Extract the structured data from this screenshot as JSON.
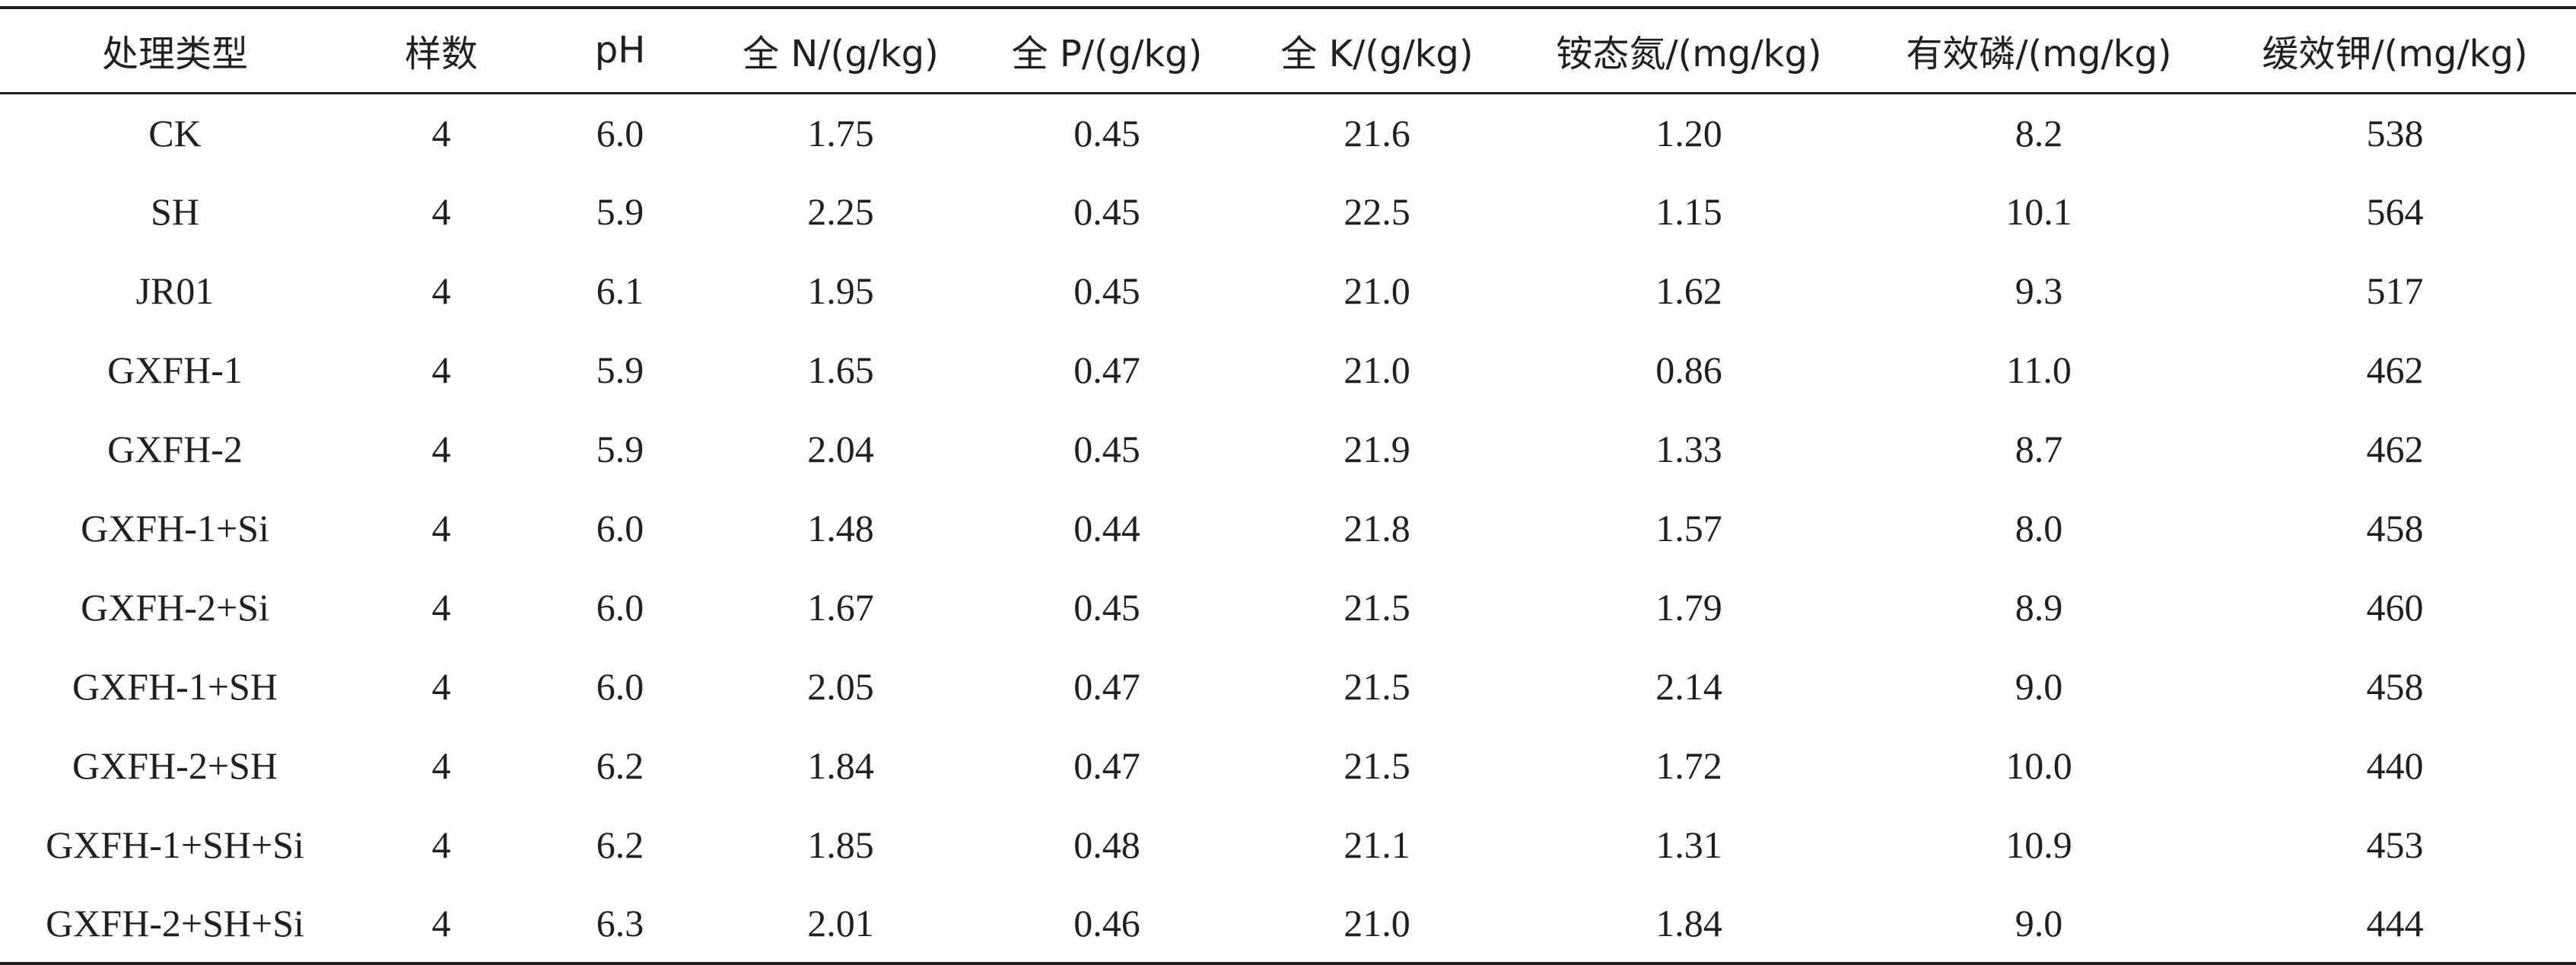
{
  "table": {
    "headers": [
      "处理类型",
      "样数",
      "pH",
      "全 N/(g/kg)",
      "全 P/(g/kg)",
      "全 K/(g/kg)",
      "铵态氮/(mg/kg)",
      "有效磷/(mg/kg)",
      "缓效钾/(mg/kg)"
    ],
    "rows": [
      [
        "CK",
        "4",
        "6.0",
        "1.75",
        "0.45",
        "21.6",
        "1.20",
        "8.2",
        "538"
      ],
      [
        "SH",
        "4",
        "5.9",
        "2.25",
        "0.45",
        "22.5",
        "1.15",
        "10.1",
        "564"
      ],
      [
        "JR01",
        "4",
        "6.1",
        "1.95",
        "0.45",
        "21.0",
        "1.62",
        "9.3",
        "517"
      ],
      [
        "GXFH-1",
        "4",
        "5.9",
        "1.65",
        "0.47",
        "21.0",
        "0.86",
        "11.0",
        "462"
      ],
      [
        "GXFH-2",
        "4",
        "5.9",
        "2.04",
        "0.45",
        "21.9",
        "1.33",
        "8.7",
        "462"
      ],
      [
        "GXFH-1+Si",
        "4",
        "6.0",
        "1.48",
        "0.44",
        "21.8",
        "1.57",
        "8.0",
        "458"
      ],
      [
        "GXFH-2+Si",
        "4",
        "6.0",
        "1.67",
        "0.45",
        "21.5",
        "1.79",
        "8.9",
        "460"
      ],
      [
        "GXFH-1+SH",
        "4",
        "6.0",
        "2.05",
        "0.47",
        "21.5",
        "2.14",
        "9.0",
        "458"
      ],
      [
        "GXFH-2+SH",
        "4",
        "6.2",
        "1.84",
        "0.47",
        "21.5",
        "1.72",
        "10.0",
        "440"
      ],
      [
        "GXFH-1+SH+Si",
        "4",
        "6.2",
        "1.85",
        "0.48",
        "21.1",
        "1.31",
        "10.9",
        "453"
      ],
      [
        "GXFH-2+SH+Si",
        "4",
        "6.3",
        "2.01",
        "0.46",
        "21.0",
        "1.84",
        "9.0",
        "444"
      ]
    ]
  }
}
